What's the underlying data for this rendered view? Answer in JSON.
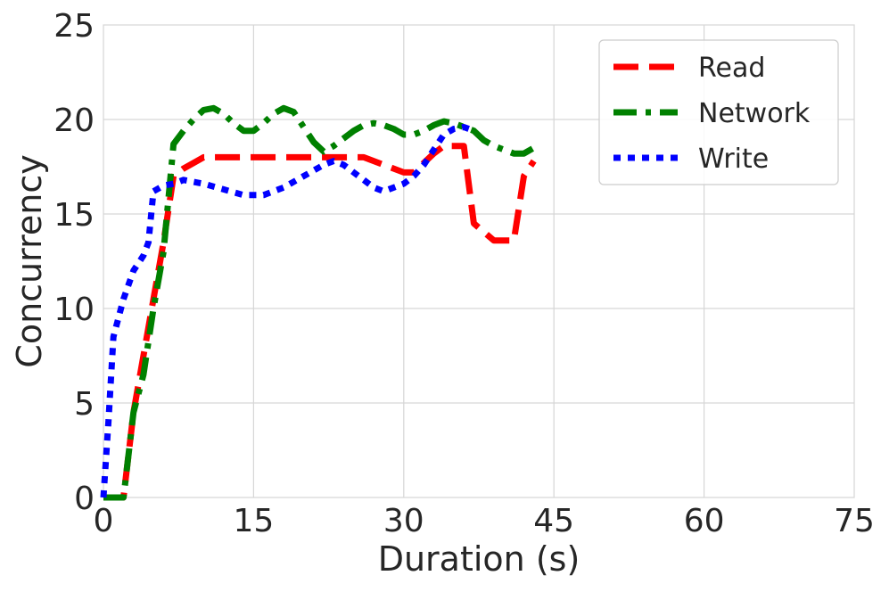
{
  "chart_data": {
    "type": "line",
    "title": "",
    "xlabel": "Duration (s)",
    "ylabel": "Concurrency",
    "xlim": [
      0,
      75
    ],
    "ylim": [
      0,
      25
    ],
    "xticks": [
      0,
      15,
      30,
      45,
      60,
      75
    ],
    "yticks": [
      0,
      5,
      10,
      15,
      20,
      25
    ],
    "xtick_labels": [
      "0",
      "15",
      "30",
      "45",
      "60",
      "75"
    ],
    "ytick_labels": [
      "0",
      "5",
      "10",
      "15",
      "20",
      "25"
    ],
    "grid": true,
    "legend": {
      "position": "top-right"
    },
    "series": [
      {
        "name": "Read",
        "color": "#ff0000",
        "dash": "dashed",
        "points": [
          [
            0,
            0
          ],
          [
            2,
            0
          ],
          [
            3,
            4.5
          ],
          [
            4,
            7.5
          ],
          [
            5,
            10.5
          ],
          [
            6,
            13.5
          ],
          [
            7,
            17
          ],
          [
            8,
            17.4
          ],
          [
            9,
            17.7
          ],
          [
            10,
            18
          ],
          [
            12,
            18
          ],
          [
            15,
            18
          ],
          [
            20,
            18
          ],
          [
            22,
            18
          ],
          [
            24,
            18
          ],
          [
            26,
            18
          ],
          [
            28,
            17.6
          ],
          [
            30,
            17.2
          ],
          [
            31,
            17.2
          ],
          [
            33,
            18.2
          ],
          [
            34,
            18.6
          ],
          [
            35,
            18.6
          ],
          [
            36,
            18.6
          ],
          [
            37,
            14.5
          ],
          [
            39,
            13.6
          ],
          [
            41,
            13.6
          ],
          [
            42,
            17
          ],
          [
            43,
            17.8
          ]
        ]
      },
      {
        "name": "Network",
        "color": "#008000",
        "dash": "dashdot",
        "points": [
          [
            0,
            0
          ],
          [
            2,
            0
          ],
          [
            3,
            4.5
          ],
          [
            4,
            6.5
          ],
          [
            5,
            10
          ],
          [
            6,
            13
          ],
          [
            7,
            18.7
          ],
          [
            8,
            19.4
          ],
          [
            9,
            20
          ],
          [
            10,
            20.5
          ],
          [
            11,
            20.6
          ],
          [
            12,
            20.3
          ],
          [
            13,
            19.8
          ],
          [
            14,
            19.4
          ],
          [
            15,
            19.4
          ],
          [
            16,
            19.8
          ],
          [
            17,
            20.3
          ],
          [
            18,
            20.6
          ],
          [
            19,
            20.4
          ],
          [
            20,
            19.6
          ],
          [
            21,
            18.8
          ],
          [
            22,
            18.3
          ],
          [
            23,
            18.6
          ],
          [
            24,
            19
          ],
          [
            25,
            19.4
          ],
          [
            26,
            19.7
          ],
          [
            27,
            19.8
          ],
          [
            28,
            19.7
          ],
          [
            29,
            19.5
          ],
          [
            30,
            19.2
          ],
          [
            31,
            19.2
          ],
          [
            32,
            19.4
          ],
          [
            33,
            19.7
          ],
          [
            34,
            19.9
          ],
          [
            35,
            19.8
          ],
          [
            36,
            19.6
          ],
          [
            37,
            19.4
          ],
          [
            38,
            18.9
          ],
          [
            39,
            18.6
          ],
          [
            40,
            18.4
          ],
          [
            41,
            18.2
          ],
          [
            42,
            18.2
          ],
          [
            43,
            18.5
          ]
        ]
      },
      {
        "name": "Write",
        "color": "#0000ff",
        "dash": "dotted",
        "points": [
          [
            0,
            0
          ],
          [
            0.5,
            4
          ],
          [
            1,
            8.5
          ],
          [
            2,
            10.5
          ],
          [
            3,
            12
          ],
          [
            4,
            12.8
          ],
          [
            4.5,
            13.5
          ],
          [
            5,
            16.2
          ],
          [
            6,
            16.5
          ],
          [
            7,
            16.6
          ],
          [
            8,
            16.8
          ],
          [
            9,
            16.7
          ],
          [
            10,
            16.6
          ],
          [
            12,
            16.3
          ],
          [
            14,
            16
          ],
          [
            16,
            16
          ],
          [
            18,
            16.4
          ],
          [
            20,
            17
          ],
          [
            22,
            17.6
          ],
          [
            23,
            17.8
          ],
          [
            24,
            17.6
          ],
          [
            26,
            16.8
          ],
          [
            27,
            16.4
          ],
          [
            28,
            16.2
          ],
          [
            29,
            16.4
          ],
          [
            30,
            16.6
          ],
          [
            31,
            17
          ],
          [
            32,
            17.6
          ],
          [
            33,
            18.4
          ],
          [
            34,
            19.2
          ],
          [
            35,
            19.5
          ],
          [
            36,
            19.6
          ],
          [
            37,
            19.4
          ]
        ]
      }
    ]
  }
}
